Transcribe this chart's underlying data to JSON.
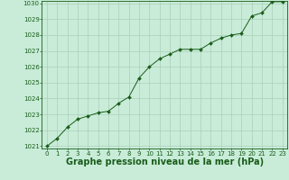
{
  "x": [
    0,
    1,
    2,
    3,
    4,
    5,
    6,
    7,
    8,
    9,
    10,
    11,
    12,
    13,
    14,
    15,
    16,
    17,
    18,
    19,
    20,
    21,
    22,
    23
  ],
  "y": [
    1021.0,
    1021.5,
    1022.2,
    1022.7,
    1022.9,
    1023.1,
    1023.2,
    1023.7,
    1024.1,
    1025.3,
    1026.0,
    1026.5,
    1026.8,
    1027.1,
    1027.1,
    1027.1,
    1027.5,
    1027.8,
    1028.0,
    1028.1,
    1029.2,
    1029.4,
    1030.1,
    1030.1
  ],
  "line_color": "#1a5c1a",
  "marker": "D",
  "marker_size": 2.0,
  "bg_color": "#c8ecd8",
  "grid_color": "#aacfbb",
  "xlabel": "Graphe pression niveau de la mer (hPa)",
  "xlabel_fontsize": 7,
  "xlabel_color": "#1a5c1a",
  "ylim_min": 1021,
  "ylim_max": 1030,
  "yticks": [
    1021,
    1022,
    1023,
    1024,
    1025,
    1026,
    1027,
    1028,
    1029,
    1030
  ],
  "xticks": [
    0,
    1,
    2,
    3,
    4,
    5,
    6,
    7,
    8,
    9,
    10,
    11,
    12,
    13,
    14,
    15,
    16,
    17,
    18,
    19,
    20,
    21,
    22,
    23
  ],
  "tick_fontsize": 5.0,
  "tick_color": "#1a5c1a",
  "spine_color": "#1a5c1a",
  "linewidth": 0.7
}
